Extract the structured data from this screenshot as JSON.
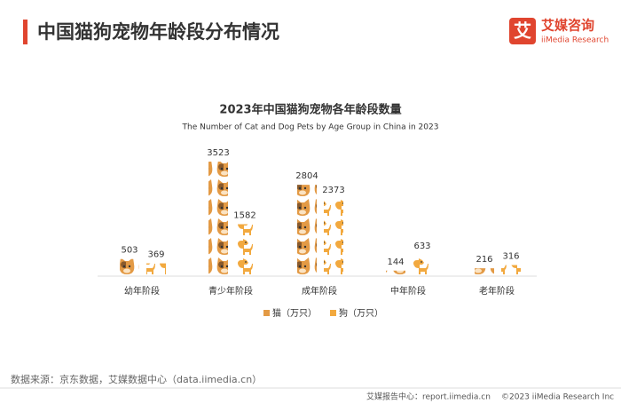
{
  "header": {
    "title": "中国猫狗宠物年龄段分布情况",
    "logo_mark": "艾",
    "logo_name": "艾媒咨询",
    "logo_sub": "iiMedia Research"
  },
  "chart_data": {
    "type": "pictograph",
    "title": "2023年中国猫狗宠物各年龄段数量",
    "subtitle": "The Number of Cat and Dog Pets by Age Group in China in 2023",
    "categories": [
      "幼年阶段",
      "青少年阶段",
      "成年阶段",
      "中年阶段",
      "老年阶段"
    ],
    "series": [
      {
        "name": "猫（万只）",
        "color": "#e39a45",
        "values": [
          503,
          3523,
          2804,
          144,
          216
        ]
      },
      {
        "name": "狗（万只）",
        "color": "#f2a93f",
        "values": [
          369,
          1582,
          2373,
          633,
          316
        ]
      }
    ]
  },
  "footer": {
    "source": "数据来源：京东数据，艾媒数据中心（data.iimedia.cn）",
    "site": "艾媒报告中心：report.iimedia.cn",
    "copyright": "©2023  iiMedia Research  Inc"
  }
}
